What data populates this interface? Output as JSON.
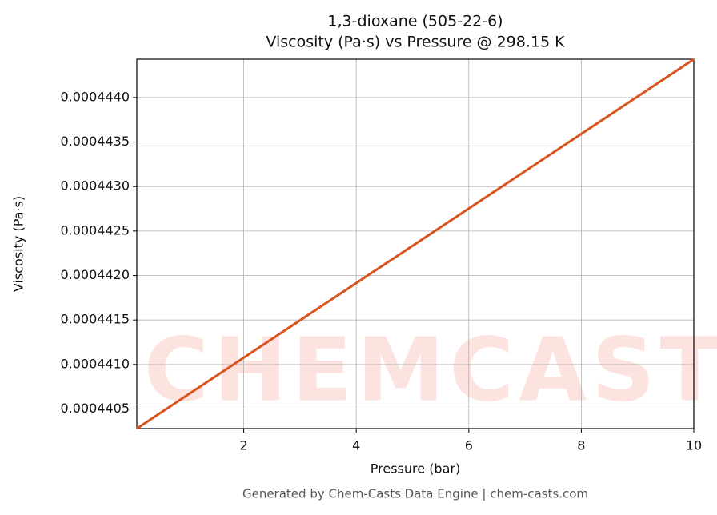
{
  "chart_data": {
    "type": "line",
    "title": [
      "1,3-dioxane (505-22-6)",
      "Viscosity (Pa·s) vs Pressure @ 298.15 K"
    ],
    "x_label": "Pressure (bar)",
    "y_label": "Viscosity (Pa·s)",
    "footer": "Generated by Chem-Casts Data Engine | chem-casts.com",
    "watermark": "CHEMCASTS",
    "x": [
      0.1,
      10
    ],
    "series": [
      {
        "name": "Viscosity",
        "color": "#d9531e",
        "values": [
          0.00044028,
          0.00044443
        ]
      }
    ],
    "xlim": [
      0.1,
      10
    ],
    "xticks": [
      2,
      4,
      6,
      8,
      10
    ],
    "ylim": [
      0.00044028,
      0.00044443
    ],
    "yticks": [
      {
        "value": 0.0004405,
        "label": "0.0004405"
      },
      {
        "value": 0.000441,
        "label": "0.0004410"
      },
      {
        "value": 0.0004415,
        "label": "0.0004415"
      },
      {
        "value": 0.000442,
        "label": "0.0004420"
      },
      {
        "value": 0.0004425,
        "label": "0.0004425"
      },
      {
        "value": 0.000443,
        "label": "0.0004430"
      },
      {
        "value": 0.0004435,
        "label": "0.0004435"
      },
      {
        "value": 0.000444,
        "label": "0.0004440"
      }
    ],
    "grid": true
  }
}
